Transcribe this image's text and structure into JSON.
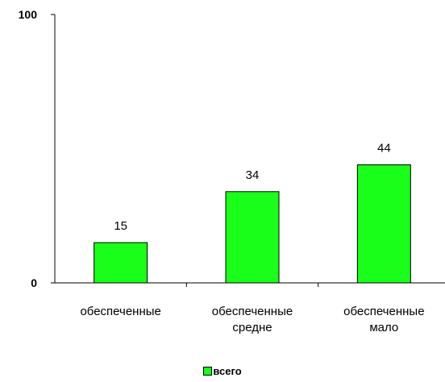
{
  "chart_data": {
    "type": "bar",
    "categories": [
      [
        "обеспеченные"
      ],
      [
        "обеспеченные",
        "средне"
      ],
      [
        "обеспеченные",
        "мало"
      ]
    ],
    "series": [
      {
        "name": "всего",
        "values": [
          15,
          34,
          44
        ],
        "color": "#19FF19"
      }
    ],
    "ylim": [
      0,
      100
    ],
    "yticks": [
      0,
      100
    ],
    "data_labels": true,
    "legend_position": "bottom",
    "grid": false
  }
}
